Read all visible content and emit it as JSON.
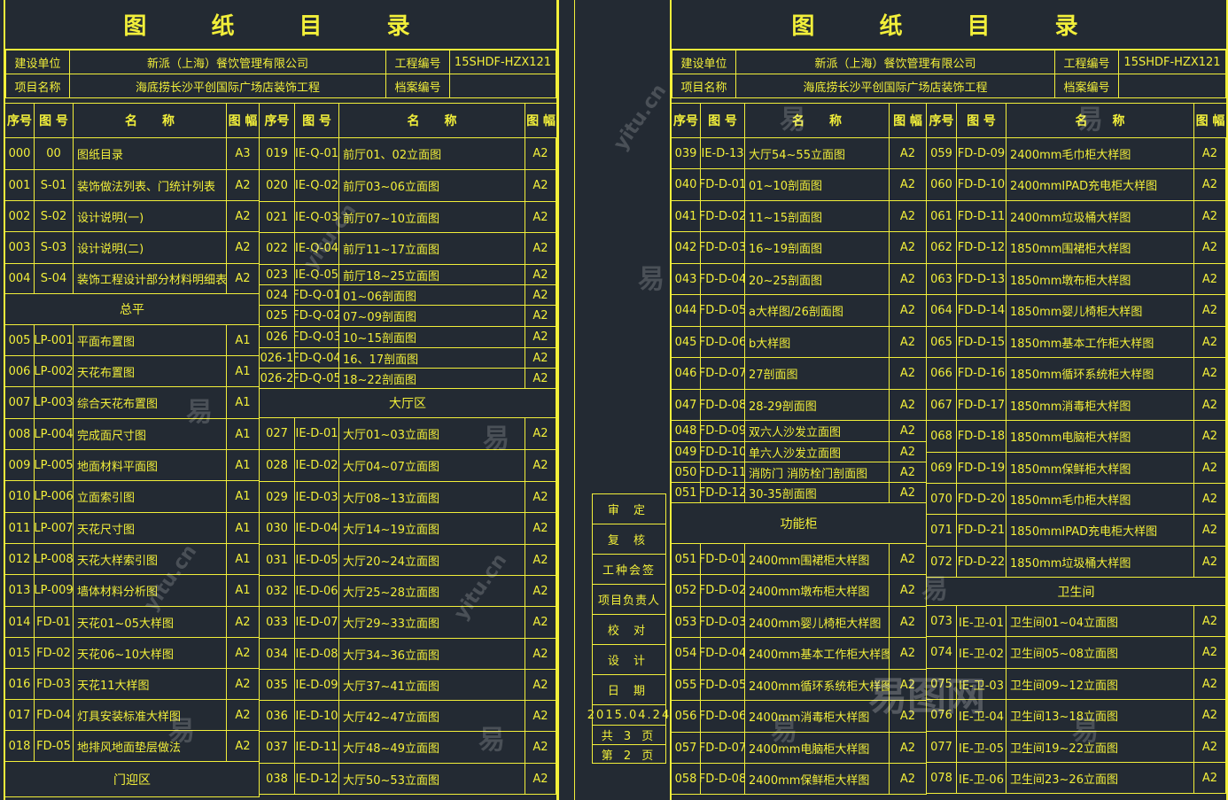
{
  "left": {
    "title": "图 纸 目 录",
    "info": {
      "client_label": "建设单位",
      "client_value": "新派（上海）餐饮管理有限公司",
      "code_label": "工程编号",
      "code_value": "15SHDF-HZX121",
      "project_label": "项目名称",
      "project_value": "海底捞长沙平创国际广场店装饰工程",
      "archive_label": "档案编号",
      "archive_value": ""
    },
    "headers": {
      "seq": "序号",
      "num": "图 号",
      "name": "名　　称",
      "size": "图 幅"
    },
    "colA": [
      {
        "seq": "000",
        "num": "00",
        "name": "图纸目录",
        "size": "A3"
      },
      {
        "seq": "001",
        "num": "S-01",
        "name": "装饰做法列表、门统计列表",
        "size": "A2"
      },
      {
        "seq": "002",
        "num": "S-02",
        "name": "设计说明(一)",
        "size": "A2"
      },
      {
        "seq": "003",
        "num": "S-03",
        "name": "设计说明(二)",
        "size": "A2"
      },
      {
        "seq": "004",
        "num": "S-04",
        "name": "装饰工程设计部分材料明细表",
        "size": "A2"
      },
      {
        "section": "总平"
      },
      {
        "seq": "005",
        "num": "LP-001",
        "name": "平面布置图",
        "size": "A1"
      },
      {
        "seq": "006",
        "num": "LP-002",
        "name": "天花布置图",
        "size": "A1"
      },
      {
        "seq": "007",
        "num": "LP-003",
        "name": "综合天花布置图",
        "size": "A1"
      },
      {
        "seq": "008",
        "num": "LP-004",
        "name": "完成面尺寸图",
        "size": "A1"
      },
      {
        "seq": "009",
        "num": "LP-005",
        "name": "地面材料平面图",
        "size": "A1"
      },
      {
        "seq": "010",
        "num": "LP-006",
        "name": "立面索引图",
        "size": "A1"
      },
      {
        "seq": "011",
        "num": "LP-007",
        "name": "天花尺寸图",
        "size": "A1"
      },
      {
        "seq": "012",
        "num": "LP-008",
        "name": "天花大样索引图",
        "size": "A1"
      },
      {
        "seq": "013",
        "num": "LP-009",
        "name": "墙体材料分析图",
        "size": "A1"
      },
      {
        "seq": "014",
        "num": "FD-01",
        "name": "天花01~05大样图",
        "size": "A2"
      },
      {
        "seq": "015",
        "num": "FD-02",
        "name": "天花06~10大样图",
        "size": "A2"
      },
      {
        "seq": "016",
        "num": "FD-03",
        "name": "天花11大样图",
        "size": "A2"
      },
      {
        "seq": "017",
        "num": "FD-04",
        "name": "灯具安装标准大样图",
        "size": "A2"
      },
      {
        "seq": "018",
        "num": "FD-05",
        "name": "地排风地面垫层做法",
        "size": "A2"
      },
      {
        "section": "门迎区"
      }
    ],
    "colB": [
      {
        "seq": "019",
        "num": "IE-Q-01",
        "name": "前厅01、02立面图",
        "size": "A2"
      },
      {
        "seq": "020",
        "num": "IE-Q-02",
        "name": "前厅03~06立面图",
        "size": "A2"
      },
      {
        "seq": "021",
        "num": "IE-Q-03",
        "name": "前厅07~10立面图",
        "size": "A2"
      },
      {
        "seq": "022",
        "num": "IE-Q-04",
        "name": "前厅11~17立面图",
        "size": "A2"
      },
      {
        "seq": "023",
        "num": "IE-Q-05",
        "name": "前厅18~25立面图",
        "size": "A2"
      },
      {
        "seq": "024",
        "num": "FD-Q-01",
        "name": "01~06剖面图",
        "size": "A2"
      },
      {
        "seq": "025",
        "num": "FD-Q-02",
        "name": "07~09剖面图",
        "size": "A2"
      },
      {
        "seq": "026",
        "num": "FD-Q-03",
        "name": "10~15剖面图",
        "size": "A2"
      },
      {
        "seq": "026-1",
        "num": "FD-Q-04",
        "name": "16、17剖面图",
        "size": "A2"
      },
      {
        "seq": "026-2",
        "num": "FD-Q-05",
        "name": "18~22剖面图",
        "size": "A2"
      },
      {
        "section": "大厅区"
      },
      {
        "seq": "027",
        "num": "IE-D-01",
        "name": "大厅01~03立面图",
        "size": "A2"
      },
      {
        "seq": "028",
        "num": "IE-D-02",
        "name": "大厅04~07立面图",
        "size": "A2"
      },
      {
        "seq": "029",
        "num": "IE-D-03",
        "name": "大厅08~13立面图",
        "size": "A2"
      },
      {
        "seq": "030",
        "num": "IE-D-04",
        "name": "大厅14~19立面图",
        "size": "A2"
      },
      {
        "seq": "031",
        "num": "IE-D-05",
        "name": "大厅20~24立面图",
        "size": "A2"
      },
      {
        "seq": "032",
        "num": "IE-D-06",
        "name": "大厅25~28立面图",
        "size": "A2"
      },
      {
        "seq": "033",
        "num": "IE-D-07",
        "name": "大厅29~33立面图",
        "size": "A2"
      },
      {
        "seq": "034",
        "num": "IE-D-08",
        "name": "大厅34~36立面图",
        "size": "A2"
      },
      {
        "seq": "035",
        "num": "IE-D-09",
        "name": "大厅37~41立面图",
        "size": "A2"
      },
      {
        "seq": "036",
        "num": "IE-D-10",
        "name": "大厅42~47立面图",
        "size": "A2"
      },
      {
        "seq": "037",
        "num": "IE-D-11",
        "name": "大厅48~49立面图",
        "size": "A2"
      },
      {
        "seq": "038",
        "num": "IE-D-12",
        "name": "大厅50~53立面图",
        "size": "A2"
      }
    ]
  },
  "right": {
    "title": "图 纸 目 录",
    "info": {
      "client_label": "建设单位",
      "client_value": "新派（上海）餐饮管理有限公司",
      "code_label": "工程编号",
      "code_value": "15SHDF-HZX121",
      "project_label": "项目名称",
      "project_value": "海底捞长沙平创国际广场店装饰工程",
      "archive_label": "档案编号",
      "archive_value": ""
    },
    "headers": {
      "seq": "序号",
      "num": "图 号",
      "name": "名　　称",
      "size": "图 幅"
    },
    "colA": [
      {
        "seq": "039",
        "num": "IE-D-13",
        "name": "大厅54~55立面图",
        "size": "A2"
      },
      {
        "seq": "040",
        "num": "FD-D-01",
        "name": "01~10剖面图",
        "size": "A2"
      },
      {
        "seq": "041",
        "num": "FD-D-02",
        "name": "11~15剖面图",
        "size": "A2"
      },
      {
        "seq": "042",
        "num": "FD-D-03",
        "name": "16~19剖面图",
        "size": "A2"
      },
      {
        "seq": "043",
        "num": "FD-D-04",
        "name": "20~25剖面图",
        "size": "A2"
      },
      {
        "seq": "044",
        "num": "FD-D-05",
        "name": "a大样图/26剖面图",
        "size": "A2"
      },
      {
        "seq": "045",
        "num": "FD-D-06",
        "name": "b大样图",
        "size": "A2"
      },
      {
        "seq": "046",
        "num": "FD-D-07",
        "name": "27剖面图",
        "size": "A2"
      },
      {
        "seq": "047",
        "num": "FD-D-08",
        "name": "28-29剖面图",
        "size": "A2"
      },
      {
        "seq": "048",
        "num": "FD-D-09",
        "name": "双六人沙发立面图",
        "size": "A2"
      },
      {
        "seq": "049",
        "num": "FD-D-10",
        "name": "单六人沙发立面图",
        "size": "A2"
      },
      {
        "seq": "050",
        "num": "FD-D-11",
        "name": "消防门 消防栓门剖面图",
        "size": "A2"
      },
      {
        "seq": "051",
        "num": "FD-D-12",
        "name": "30-35剖面图",
        "size": "A2"
      },
      {
        "section": "功能柜"
      },
      {
        "seq": "051",
        "num": "FD-D-01",
        "name": "2400mm围裙柜大样图",
        "size": "A2"
      },
      {
        "seq": "052",
        "num": "FD-D-02",
        "name": "2400mm墩布柜大样图",
        "size": "A2"
      },
      {
        "seq": "053",
        "num": "FD-D-03",
        "name": "2400mm婴儿椅柜大样图",
        "size": "A2"
      },
      {
        "seq": "054",
        "num": "FD-D-04",
        "name": "2400mm基本工作柜大样图",
        "size": "A2"
      },
      {
        "seq": "055",
        "num": "FD-D-05",
        "name": "2400mm循环系统柜大样图",
        "size": "A2"
      },
      {
        "seq": "056",
        "num": "FD-D-06",
        "name": "2400mm消毒柜大样图",
        "size": "A2"
      },
      {
        "seq": "057",
        "num": "FD-D-07",
        "name": "2400mm电脑柜大样图",
        "size": "A2"
      },
      {
        "seq": "058",
        "num": "FD-D-08",
        "name": "2400mm保鲜柜大样图",
        "size": "A2"
      }
    ],
    "colB": [
      {
        "seq": "059",
        "num": "FD-D-09",
        "name": "2400mm毛巾柜大样图",
        "size": "A2"
      },
      {
        "seq": "060",
        "num": "FD-D-10",
        "name": "2400mmIPAD充电柜大样图",
        "size": "A2"
      },
      {
        "seq": "061",
        "num": "FD-D-11",
        "name": "2400mm垃圾桶大样图",
        "size": "A2"
      },
      {
        "seq": "062",
        "num": "FD-D-12",
        "name": "1850mm围裙柜大样图",
        "size": "A2"
      },
      {
        "seq": "063",
        "num": "FD-D-13",
        "name": "1850mm墩布柜大样图",
        "size": "A2"
      },
      {
        "seq": "064",
        "num": "FD-D-14",
        "name": "1850mm婴儿椅柜大样图",
        "size": "A2"
      },
      {
        "seq": "065",
        "num": "FD-D-15",
        "name": "1850mm基本工作柜大样图",
        "size": "A2"
      },
      {
        "seq": "066",
        "num": "FD-D-16",
        "name": "1850mm循环系统柜大样图",
        "size": "A2"
      },
      {
        "seq": "067",
        "num": "FD-D-17",
        "name": "1850mm消毒柜大样图",
        "size": "A2"
      },
      {
        "seq": "068",
        "num": "FD-D-18",
        "name": "1850mm电脑柜大样图",
        "size": "A2"
      },
      {
        "seq": "069",
        "num": "FD-D-19",
        "name": "1850mm保鲜柜大样图",
        "size": "A2"
      },
      {
        "seq": "070",
        "num": "FD-D-20",
        "name": "1850mm毛巾柜大样图",
        "size": "A2"
      },
      {
        "seq": "071",
        "num": "FD-D-21",
        "name": "1850mmIPAD充电柜大样图",
        "size": "A2"
      },
      {
        "seq": "072",
        "num": "FD-D-22",
        "name": "1850mm垃圾桶大样图",
        "size": "A2"
      },
      {
        "section": "卫生间"
      },
      {
        "seq": "073",
        "num": "IE-卫-01",
        "name": "卫生间01~04立面图",
        "size": "A2"
      },
      {
        "seq": "074",
        "num": "IE-卫-02",
        "name": "卫生间05~08立面图",
        "size": "A2"
      },
      {
        "seq": "075",
        "num": "IE-卫-03",
        "name": "卫生间09~12立面图",
        "size": "A2"
      },
      {
        "seq": "076",
        "num": "IE-卫-04",
        "name": "卫生间13~18立面图",
        "size": "A2"
      },
      {
        "seq": "077",
        "num": "IE-卫-05",
        "name": "卫生间19~22立面图",
        "size": "A2"
      },
      {
        "seq": "078",
        "num": "IE-卫-06",
        "name": "卫生间23~26立面图",
        "size": "A2"
      }
    ]
  },
  "signoff": {
    "approve": "审 定",
    "review": "复 核",
    "disciplines": "工种会签",
    "project_lead": "项目负责人",
    "check": "校 对",
    "design": "设 计",
    "date_label": "日 期",
    "date_value": "2015.04.24",
    "total_pages": "共 3 页",
    "page": "第 2 页"
  },
  "watermarks": [
    "易",
    "yitu.cn",
    "易图网"
  ],
  "colors": {
    "line": "#f2ef3a",
    "background": "#232a33"
  }
}
